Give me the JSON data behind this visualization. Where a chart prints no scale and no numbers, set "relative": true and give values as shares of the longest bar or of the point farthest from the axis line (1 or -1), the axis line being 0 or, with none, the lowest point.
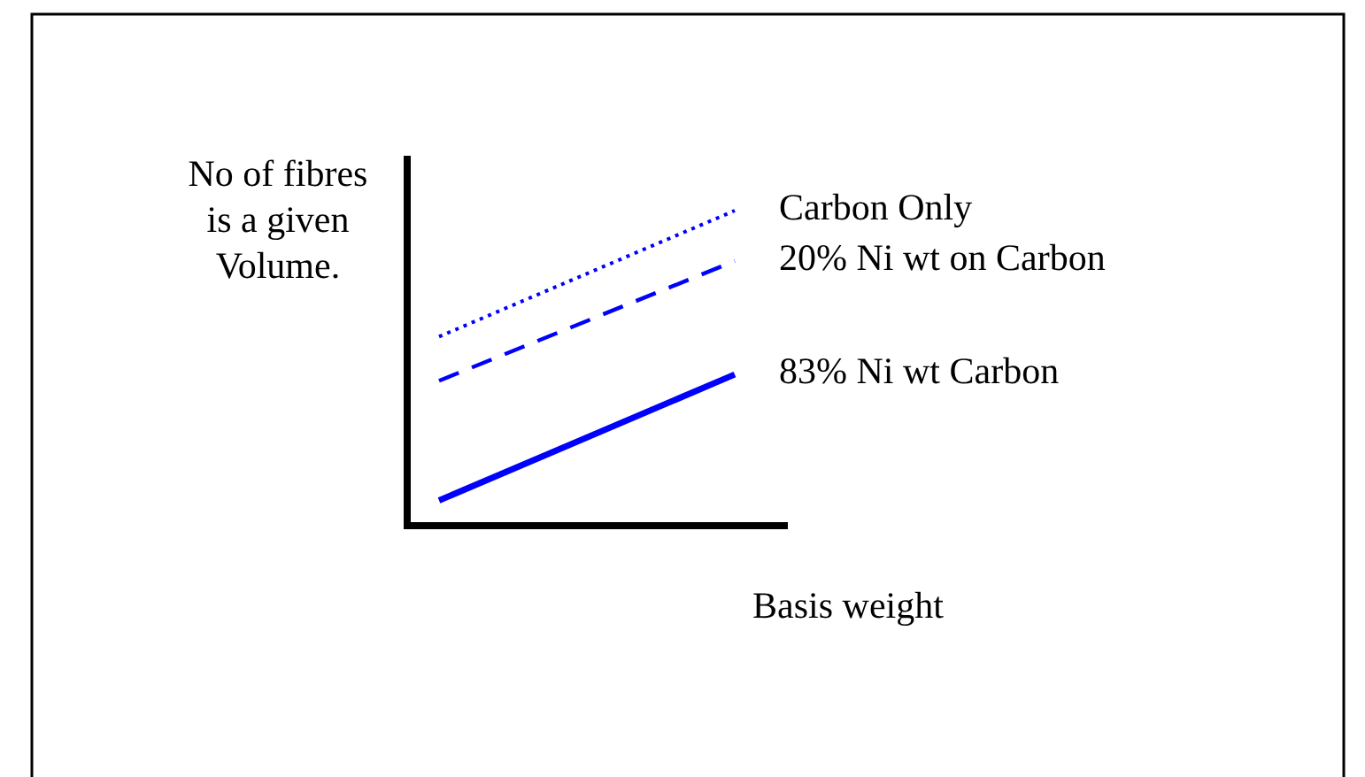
{
  "chart_data": {
    "type": "line",
    "relative": true,
    "categories": [
      null,
      null
    ],
    "xlabel": "Basis weight",
    "ylabel": "No of fibres is a given Volume.",
    "grid": false,
    "series": [
      {
        "name": "Carbon Only",
        "color": "#0000ff",
        "line_style": "dotted",
        "values": [
          0.6,
          1
        ]
      },
      {
        "name": "20% Ni wt on Carbon",
        "color": "#0000ff",
        "line_style": "dashed",
        "values": [
          0.46,
          0.84
        ]
      },
      {
        "name": "83% Ni wt Carbon",
        "color": "#0000ff",
        "line_style": "solid",
        "values": [
          0.08,
          0.48
        ]
      }
    ]
  }
}
